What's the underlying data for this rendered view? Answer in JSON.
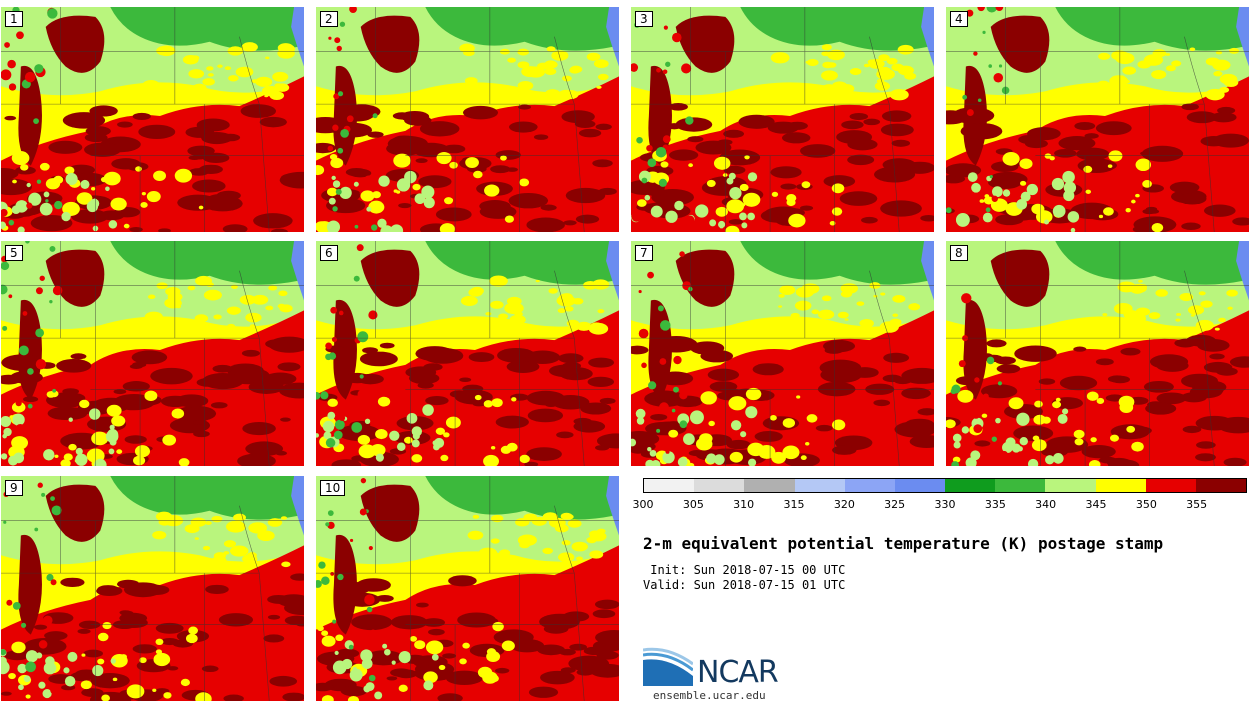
{
  "panels": [
    "1",
    "2",
    "3",
    "4",
    "5",
    "6",
    "7",
    "8",
    "9",
    "10"
  ],
  "colorbar": {
    "colors": [
      "#f2f2f2",
      "#dcdcdc",
      "#b0b0b0",
      "#b4c8f5",
      "#8ca5f5",
      "#6b8cf0",
      "#0f9c1e",
      "#3cb93c",
      "#b9f57d",
      "#ffff00",
      "#e60000",
      "#8b0000"
    ],
    "tick_labels": [
      "300",
      "305",
      "310",
      "315",
      "320",
      "325",
      "330",
      "335",
      "340",
      "345",
      "350",
      "355"
    ]
  },
  "title": "2-m equivalent potential temperature (K) postage stamp",
  "init": " Init: Sun 2018-07-15 00 UTC",
  "valid": "Valid: Sun 2018-07-15 01 UTC",
  "logo": {
    "name": "NCAR",
    "url": "ensemble.ucar.edu"
  },
  "map_colors": {
    "dark_green": "#3cb93c",
    "light_green": "#b9f57d",
    "yellow": "#ffff00",
    "red": "#e60000",
    "dark_red": "#8b0000",
    "lake_blue": "#6b8cf0"
  }
}
